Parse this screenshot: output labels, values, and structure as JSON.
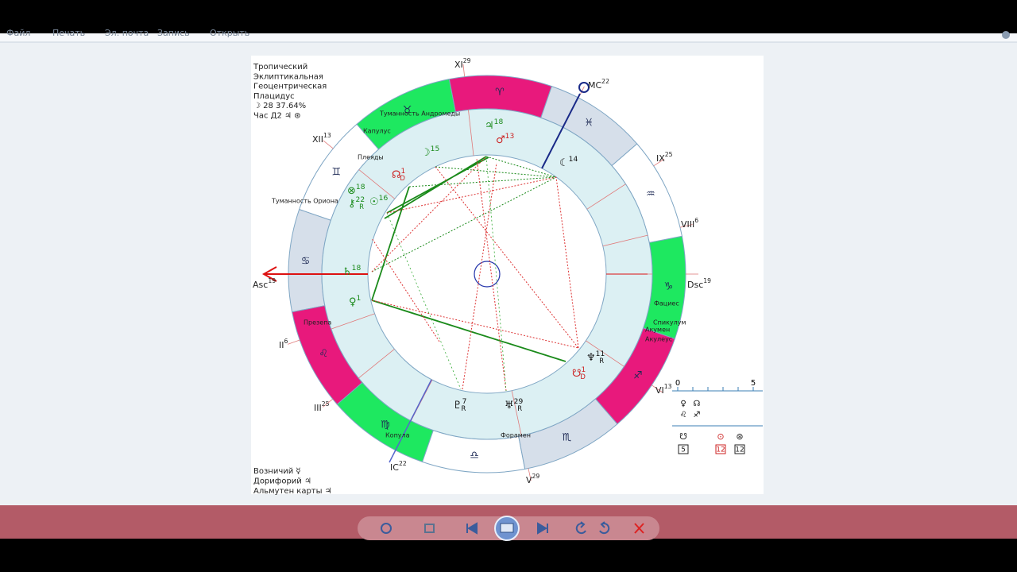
{
  "menu": [
    "Файл",
    "Печать",
    "Эл. почта",
    "Запись",
    "Открыть"
  ],
  "info": [
    "Тропический",
    "Эклиптикальная",
    "Геоцентрическая",
    "Плацидус",
    "☽  28 37.64%",
    "Час Д2  ♃  ⊛"
  ],
  "houses": [
    {
      "label": "XI",
      "deg": "29"
    },
    {
      "label": "MC",
      "deg": "22"
    },
    {
      "label": "IX",
      "deg": "25"
    },
    {
      "label": "VIII",
      "deg": "6"
    },
    {
      "label": "Dsc",
      "deg": "19"
    },
    {
      "label": "VI",
      "deg": "13"
    },
    {
      "label": "V",
      "deg": "29"
    },
    {
      "label": "IC",
      "deg": "22"
    },
    {
      "label": "III",
      "deg": "25"
    },
    {
      "label": "II",
      "deg": "6"
    },
    {
      "label": "Asc",
      "deg": "19"
    },
    {
      "label": "XII",
      "deg": "13"
    }
  ],
  "signs": [
    "♈",
    "♉",
    "♊",
    "♋",
    "♌",
    "♍",
    "♎",
    "♏",
    "♐",
    "♑",
    "♒",
    "♓"
  ],
  "stars": [
    "Туманность Андромеды",
    "Капулус",
    "Плеяды",
    "Туманность Ориона",
    "Презепа",
    "Фациес",
    "Спикулум",
    "Акумен",
    "Акулеус",
    "Копула",
    "Форамен"
  ],
  "planets": [
    {
      "glyph": "♃",
      "deg": "18"
    },
    {
      "glyph": "♂",
      "deg": "13"
    },
    {
      "glyph": "☽",
      "deg": "15"
    },
    {
      "glyph": "☊",
      "deg": "1",
      "note": "D"
    },
    {
      "glyph": "⊗",
      "deg": "18"
    },
    {
      "glyph": "⚷",
      "deg": "22",
      "note": "R"
    },
    {
      "glyph": "☉",
      "deg": "16"
    },
    {
      "glyph": "♄",
      "deg": "18"
    },
    {
      "glyph": "♀",
      "deg": "1"
    },
    {
      "glyph": "☾",
      "deg": "14"
    },
    {
      "glyph": "♆",
      "deg": "11",
      "note": "R"
    },
    {
      "glyph": "☋",
      "deg": "1",
      "note": "D"
    },
    {
      "glyph": "♇",
      "deg": "7",
      "note": "R"
    },
    {
      "glyph": "♅",
      "deg": "29",
      "note": "R"
    }
  ],
  "footer": [
    "Возничий  ☿",
    "Дорифорий  ♃",
    "Альмутен карты  ♃"
  ],
  "side_table": {
    "scale": [
      "0",
      "5"
    ],
    "row1": [
      "♀",
      "☊"
    ],
    "row2": [
      "♌",
      "♐"
    ],
    "icons": [
      "☋",
      "⊙",
      "⊛"
    ],
    "boxes": [
      "5",
      "12",
      "12"
    ]
  }
}
